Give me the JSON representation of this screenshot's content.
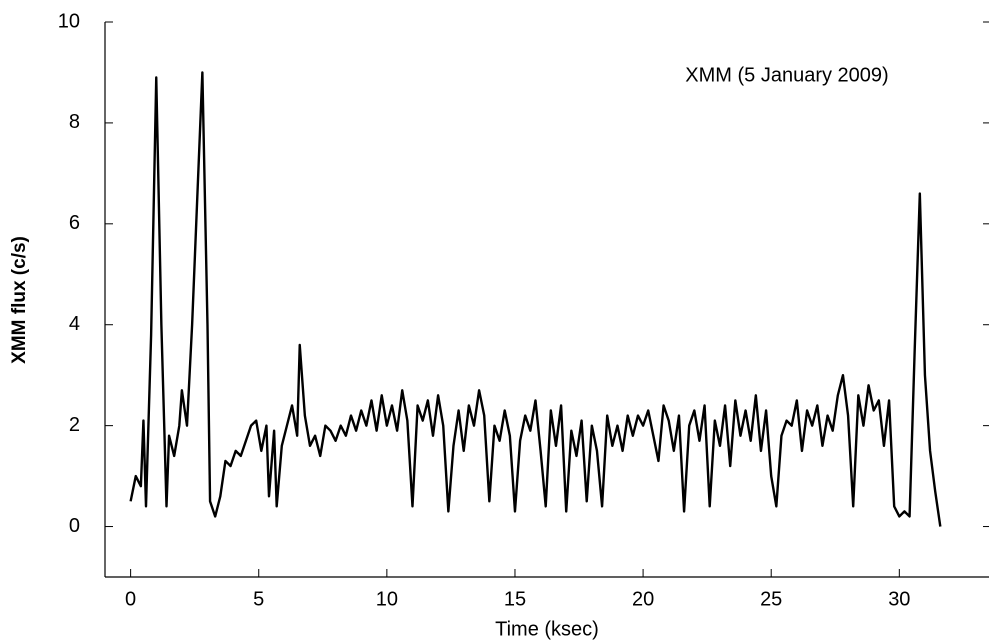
{
  "chart_data": {
    "type": "line",
    "annotation": "XMM (5 January 2009)",
    "x_label": "Time (ksec)",
    "y_label": "XMM flux (c/s)",
    "color": "#000000",
    "xlim": [
      -1,
      33.5
    ],
    "ylim": [
      -1,
      10
    ],
    "xticks": [
      0,
      5,
      10,
      15,
      20,
      25,
      30
    ],
    "yticks": [
      0,
      2,
      4,
      6,
      8,
      10
    ],
    "x": [
      0.0,
      0.2,
      0.4,
      0.5,
      0.6,
      0.8,
      1.0,
      1.2,
      1.4,
      1.5,
      1.7,
      1.9,
      2.0,
      2.2,
      2.4,
      2.6,
      2.8,
      3.0,
      3.1,
      3.3,
      3.5,
      3.7,
      3.9,
      4.1,
      4.3,
      4.5,
      4.7,
      4.9,
      5.1,
      5.3,
      5.4,
      5.6,
      5.7,
      5.9,
      6.1,
      6.3,
      6.5,
      6.6,
      6.8,
      7.0,
      7.2,
      7.4,
      7.6,
      7.8,
      8.0,
      8.2,
      8.4,
      8.6,
      8.8,
      9.0,
      9.2,
      9.4,
      9.6,
      9.8,
      10.0,
      10.2,
      10.4,
      10.6,
      10.8,
      11.0,
      11.2,
      11.4,
      11.6,
      11.8,
      12.0,
      12.2,
      12.4,
      12.6,
      12.8,
      13.0,
      13.2,
      13.4,
      13.6,
      13.8,
      14.0,
      14.2,
      14.4,
      14.6,
      14.8,
      15.0,
      15.2,
      15.4,
      15.6,
      15.8,
      16.0,
      16.2,
      16.4,
      16.6,
      16.8,
      17.0,
      17.2,
      17.4,
      17.6,
      17.8,
      18.0,
      18.2,
      18.4,
      18.6,
      18.8,
      19.0,
      19.2,
      19.4,
      19.6,
      19.8,
      20.0,
      20.2,
      20.4,
      20.6,
      20.8,
      21.0,
      21.2,
      21.4,
      21.6,
      21.8,
      22.0,
      22.2,
      22.4,
      22.6,
      22.8,
      23.0,
      23.2,
      23.4,
      23.6,
      23.8,
      24.0,
      24.2,
      24.4,
      24.6,
      24.8,
      25.0,
      25.2,
      25.4,
      25.6,
      25.8,
      26.0,
      26.2,
      26.4,
      26.6,
      26.8,
      27.0,
      27.2,
      27.4,
      27.6,
      27.8,
      28.0,
      28.2,
      28.4,
      28.6,
      28.8,
      29.0,
      29.2,
      29.4,
      29.6,
      29.8,
      30.0,
      30.2,
      30.4,
      30.6,
      30.8,
      31.0,
      31.2,
      31.4,
      31.6
    ],
    "values": [
      0.5,
      1.0,
      0.8,
      2.1,
      0.4,
      3.8,
      8.9,
      4.0,
      0.4,
      1.8,
      1.4,
      2.0,
      2.7,
      2.0,
      4.0,
      6.5,
      9.0,
      4.0,
      0.5,
      0.2,
      0.6,
      1.3,
      1.2,
      1.5,
      1.4,
      1.7,
      2.0,
      2.1,
      1.5,
      2.0,
      0.6,
      1.9,
      0.4,
      1.6,
      2.0,
      2.4,
      1.8,
      3.6,
      2.2,
      1.6,
      1.8,
      1.4,
      2.0,
      1.9,
      1.7,
      2.0,
      1.8,
      2.2,
      1.9,
      2.3,
      2.0,
      2.5,
      1.9,
      2.6,
      2.0,
      2.4,
      1.9,
      2.7,
      2.1,
      0.4,
      2.4,
      2.1,
      2.5,
      1.8,
      2.6,
      2.0,
      0.3,
      1.6,
      2.3,
      1.5,
      2.4,
      2.0,
      2.7,
      2.2,
      0.5,
      2.0,
      1.7,
      2.3,
      1.8,
      0.3,
      1.7,
      2.2,
      1.9,
      2.5,
      1.5,
      0.4,
      2.3,
      1.6,
      2.4,
      0.3,
      1.9,
      1.4,
      2.1,
      0.5,
      2.0,
      1.5,
      0.4,
      2.2,
      1.6,
      2.0,
      1.5,
      2.2,
      1.8,
      2.2,
      2.0,
      2.3,
      1.8,
      1.3,
      2.4,
      2.1,
      1.5,
      2.2,
      0.3,
      2.0,
      2.3,
      1.7,
      2.4,
      0.4,
      2.1,
      1.6,
      2.4,
      1.2,
      2.5,
      1.8,
      2.3,
      1.7,
      2.6,
      1.5,
      2.3,
      1.0,
      0.4,
      1.8,
      2.1,
      2.0,
      2.5,
      1.5,
      2.3,
      2.0,
      2.4,
      1.6,
      2.2,
      1.9,
      2.6,
      3.0,
      2.2,
      0.4,
      2.6,
      2.0,
      2.8,
      2.3,
      2.5,
      1.6,
      2.5,
      0.4,
      0.2,
      0.3,
      0.2,
      3.5,
      6.6,
      3.0,
      1.5,
      0.7,
      0.0
    ]
  }
}
